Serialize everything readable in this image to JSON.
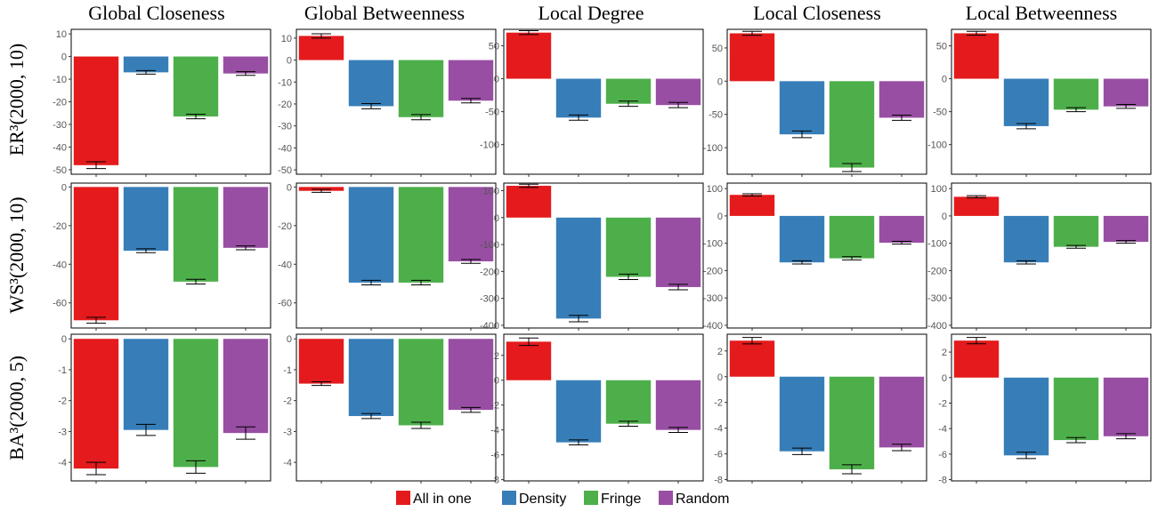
{
  "column_titles": [
    "Global Closeness",
    "Global Betweenness",
    "Local Degree",
    "Local Closeness",
    "Local Betweenness"
  ],
  "row_labels": [
    "ER³(2000, 10)",
    "WS³(2000, 10)",
    "BA³(2000, 5)"
  ],
  "legend": [
    {
      "name": "All in one",
      "color": "#E41A1C"
    },
    {
      "name": "Density",
      "color": "#377EB8"
    },
    {
      "name": "Fringe",
      "color": "#4DAF4A"
    },
    {
      "name": "Random",
      "color": "#984EA3"
    }
  ],
  "chart_data": [
    {
      "type": "bar",
      "row": "ER³(2000, 10)",
      "column": "Global Closeness",
      "categories": [
        "All in one",
        "Density",
        "Fringe",
        "Random"
      ],
      "values": [
        -48,
        -7,
        -26.5,
        -7.5
      ],
      "errors": [
        1.5,
        0.8,
        1.0,
        0.8
      ],
      "ylim": [
        -52,
        12
      ],
      "yticks": [
        10,
        0,
        -10,
        -20,
        -30,
        -40,
        -50
      ]
    },
    {
      "type": "bar",
      "row": "ER³(2000, 10)",
      "column": "Global Betweenness",
      "categories": [
        "All in one",
        "Density",
        "Fringe",
        "Random"
      ],
      "values": [
        11,
        -21,
        -26,
        -18.5
      ],
      "errors": [
        1.0,
        1.2,
        1.2,
        1.0
      ],
      "ylim": [
        -52,
        14
      ],
      "yticks": [
        10,
        0,
        -10,
        -20,
        -30,
        -40,
        -50
      ]
    },
    {
      "type": "bar",
      "row": "ER³(2000, 10)",
      "column": "Local Degree",
      "categories": [
        "All in one",
        "Density",
        "Fringe",
        "Random"
      ],
      "values": [
        70,
        -59,
        -38,
        -40
      ],
      "errors": [
        3,
        4,
        4,
        4
      ],
      "ylim": [
        -145,
        75
      ],
      "yticks": [
        50,
        0,
        -50,
        -100
      ]
    },
    {
      "type": "bar",
      "row": "ER³(2000, 10)",
      "column": "Local Closeness",
      "categories": [
        "All in one",
        "Density",
        "Fringe",
        "Random"
      ],
      "values": [
        72,
        -80,
        -130,
        -55
      ],
      "errors": [
        3,
        5,
        6,
        4
      ],
      "ylim": [
        -140,
        78
      ],
      "yticks": [
        50,
        0,
        -50,
        -100
      ]
    },
    {
      "type": "bar",
      "row": "ER³(2000, 10)",
      "column": "Local Betweenness",
      "categories": [
        "All in one",
        "Density",
        "Fringe",
        "Random"
      ],
      "values": [
        69,
        -72,
        -47,
        -42
      ],
      "errors": [
        3,
        4,
        3,
        3
      ],
      "ylim": [
        -145,
        75
      ],
      "yticks": [
        50,
        0,
        -50,
        -100
      ]
    },
    {
      "type": "bar",
      "row": "WS³(2000, 10)",
      "column": "Global Closeness",
      "categories": [
        "All in one",
        "Density",
        "Fringe",
        "Random"
      ],
      "values": [
        -69,
        -33,
        -49,
        -31.5
      ],
      "errors": [
        1.5,
        1.0,
        1.2,
        1.0
      ],
      "ylim": [
        -73,
        2
      ],
      "yticks": [
        0,
        -20,
        -40,
        -60
      ]
    },
    {
      "type": "bar",
      "row": "WS³(2000, 10)",
      "column": "Global Betweenness",
      "categories": [
        "All in one",
        "Density",
        "Fringe",
        "Random"
      ],
      "values": [
        -2,
        -49.5,
        -49.5,
        -38.5
      ],
      "errors": [
        0.8,
        1.2,
        1.2,
        1.0
      ],
      "ylim": [
        -73,
        2
      ],
      "yticks": [
        0,
        -20,
        -40,
        -60
      ]
    },
    {
      "type": "bar",
      "row": "WS³(2000, 10)",
      "column": "Local Degree",
      "categories": [
        "All in one",
        "Density",
        "Fringe",
        "Random"
      ],
      "values": [
        118,
        -375,
        -220,
        -258
      ],
      "errors": [
        6,
        12,
        10,
        10
      ],
      "ylim": [
        -410,
        128
      ],
      "yticks": [
        100,
        0,
        -100,
        -200,
        -300,
        -400
      ]
    },
    {
      "type": "bar",
      "row": "WS³(2000, 10)",
      "column": "Local Closeness",
      "categories": [
        "All in one",
        "Density",
        "Fringe",
        "Random"
      ],
      "values": [
        77,
        -170,
        -155,
        -98
      ],
      "errors": [
        4,
        6,
        6,
        5
      ],
      "ylim": [
        -410,
        120
      ],
      "yticks": [
        100,
        0,
        -100,
        -200,
        -300,
        -400
      ]
    },
    {
      "type": "bar",
      "row": "WS³(2000, 10)",
      "column": "Local Betweenness",
      "categories": [
        "All in one",
        "Density",
        "Fringe",
        "Random"
      ],
      "values": [
        70,
        -170,
        -113,
        -95
      ],
      "errors": [
        4,
        6,
        5,
        5
      ],
      "ylim": [
        -410,
        120
      ],
      "yticks": [
        100,
        0,
        -100,
        -200,
        -300,
        -400
      ]
    },
    {
      "type": "bar",
      "row": "BA³(2000, 5)",
      "column": "Global Closeness",
      "categories": [
        "All in one",
        "Density",
        "Fringe",
        "Random"
      ],
      "values": [
        -4.2,
        -2.95,
        -4.15,
        -3.05
      ],
      "errors": [
        0.2,
        0.18,
        0.2,
        0.2
      ],
      "ylim": [
        -4.6,
        0.15
      ],
      "yticks": [
        0,
        -1,
        -2,
        -3,
        -4
      ]
    },
    {
      "type": "bar",
      "row": "BA³(2000, 5)",
      "column": "Global Betweenness",
      "categories": [
        "All in one",
        "Density",
        "Fringe",
        "Random"
      ],
      "values": [
        -1.45,
        -2.5,
        -2.8,
        -2.3
      ],
      "errors": [
        0.06,
        0.08,
        0.1,
        0.08
      ],
      "ylim": [
        -4.6,
        0.15
      ],
      "yticks": [
        0,
        -1,
        -2,
        -3,
        -4
      ]
    },
    {
      "type": "bar",
      "row": "BA³(2000, 5)",
      "column": "Local Degree",
      "categories": [
        "All in one",
        "Density",
        "Fringe",
        "Random"
      ],
      "values": [
        3.1,
        -5.0,
        -3.5,
        -4.0
      ],
      "errors": [
        0.3,
        0.2,
        0.2,
        0.2
      ],
      "ylim": [
        -8.1,
        3.7
      ],
      "yticks": [
        2,
        0,
        -2,
        -4,
        -6,
        -8
      ]
    },
    {
      "type": "bar",
      "row": "BA³(2000, 5)",
      "column": "Local Closeness",
      "categories": [
        "All in one",
        "Density",
        "Fringe",
        "Random"
      ],
      "values": [
        2.8,
        -5.8,
        -7.2,
        -5.5
      ],
      "errors": [
        0.25,
        0.25,
        0.35,
        0.25
      ],
      "ylim": [
        -8.1,
        3.3
      ],
      "yticks": [
        2,
        0,
        -2,
        -4,
        -6,
        -8
      ]
    },
    {
      "type": "bar",
      "row": "BA³(2000, 5)",
      "column": "Local Betweenness",
      "categories": [
        "All in one",
        "Density",
        "Fringe",
        "Random"
      ],
      "values": [
        2.9,
        -6.1,
        -4.9,
        -4.6
      ],
      "errors": [
        0.25,
        0.25,
        0.2,
        0.2
      ],
      "ylim": [
        -8.1,
        3.4
      ],
      "yticks": [
        2,
        0,
        -2,
        -4,
        -6,
        -8
      ]
    }
  ]
}
